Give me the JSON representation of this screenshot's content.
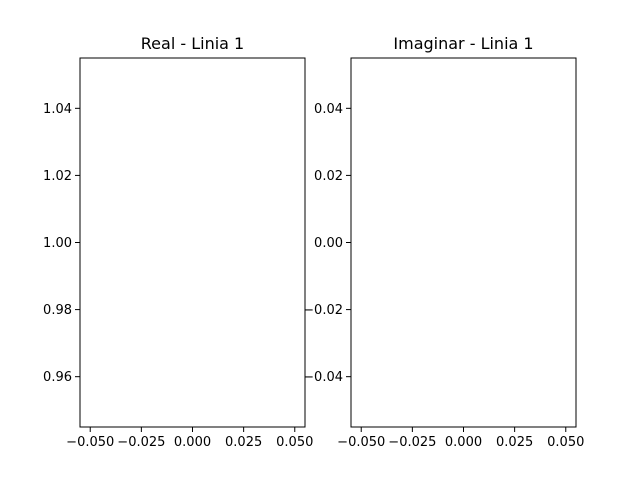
{
  "chart_data": [
    {
      "type": "line",
      "title": "Real - Linia 1",
      "xlabel": "",
      "ylabel": "",
      "xlim": [
        -0.055,
        0.055
      ],
      "ylim": [
        0.945,
        1.055
      ],
      "x_ticks": [
        -0.05,
        -0.025,
        0.0,
        0.025,
        0.05
      ],
      "x_tick_labels": [
        "−0.050",
        "−0.025",
        "0.000",
        "0.025",
        "0.050"
      ],
      "y_ticks": [
        0.96,
        0.98,
        1.0,
        1.02,
        1.04
      ],
      "y_tick_labels": [
        "0.96",
        "0.98",
        "1.00",
        "1.02",
        "1.04"
      ],
      "grid": false,
      "series": []
    },
    {
      "type": "line",
      "title": "Imaginar - Linia 1",
      "xlabel": "",
      "ylabel": "",
      "xlim": [
        -0.055,
        0.055
      ],
      "ylim": [
        -0.055,
        0.055
      ],
      "x_ticks": [
        -0.05,
        -0.025,
        0.0,
        0.025,
        0.05
      ],
      "x_tick_labels": [
        "−0.050",
        "−0.025",
        "0.000",
        "0.025",
        "0.050"
      ],
      "y_ticks": [
        -0.04,
        -0.02,
        0.0,
        0.02,
        0.04
      ],
      "y_tick_labels": [
        "−0.04",
        "−0.02",
        "0.00",
        "0.02",
        "0.04"
      ],
      "grid": false,
      "series": []
    }
  ]
}
